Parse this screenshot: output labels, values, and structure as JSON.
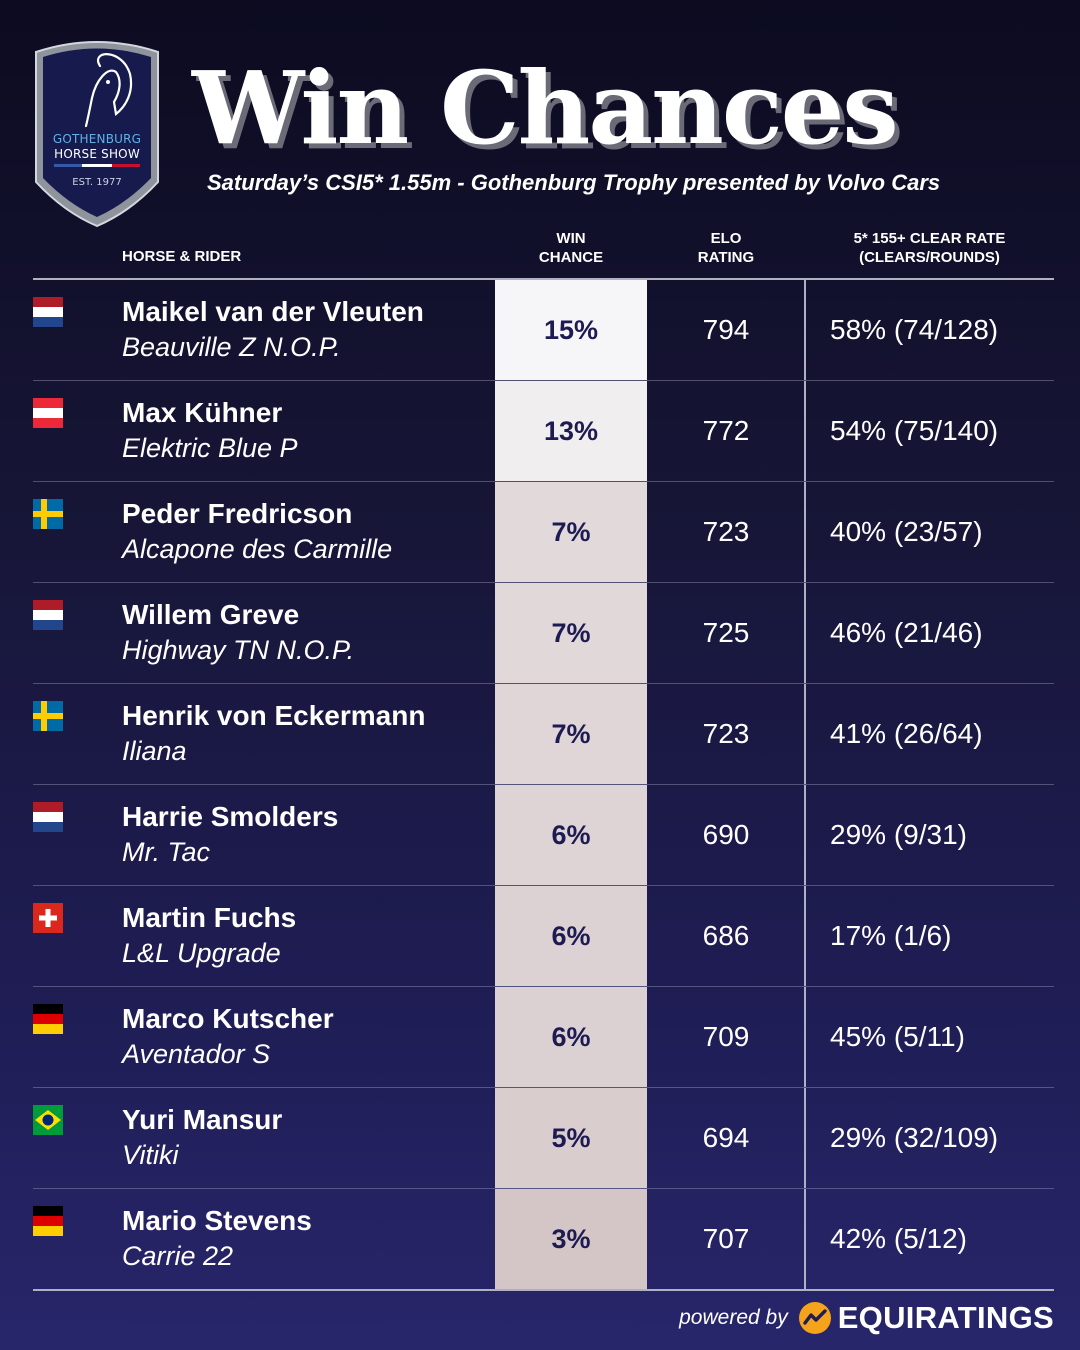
{
  "logo": {
    "line1": "GOTHENBURG",
    "line2": "HORSE SHOW",
    "est": "EST. 1977"
  },
  "title": "Win Chances",
  "subtitle": "Saturday’s CSI5* 1.55m - Gothenburg Trophy presented by Volvo Cars",
  "columns": {
    "rider_line1": "HORSE & RIDER",
    "win_line1": "WIN",
    "win_line2": "CHANCE",
    "elo_line1": "ELO",
    "elo_line2": "RATING",
    "clear_line1": "5* 155+ CLEAR RATE",
    "clear_line2": "(CLEARS/ROUNDS)"
  },
  "rows": [
    {
      "flag": "netherlands-flag",
      "rider": "Maikel van der Vleuten",
      "horse": "Beauville Z N.O.P.",
      "win": "15%",
      "elo": "794",
      "clear": "58% (74/128)"
    },
    {
      "flag": "austria-flag",
      "rider": "Max Kühner",
      "horse": "Elektric Blue P",
      "win": "13%",
      "elo": "772",
      "clear": "54% (75/140)"
    },
    {
      "flag": "sweden-flag",
      "rider": "Peder Fredricson",
      "horse": "Alcapone des Carmille",
      "win": "7%",
      "elo": "723",
      "clear": "40% (23/57)"
    },
    {
      "flag": "netherlands-flag",
      "rider": "Willem Greve",
      "horse": "Highway TN N.O.P.",
      "win": "7%",
      "elo": "725",
      "clear": "46% (21/46)"
    },
    {
      "flag": "sweden-flag",
      "rider": "Henrik von Eckermann",
      "horse": "Iliana",
      "win": "7%",
      "elo": "723",
      "clear": "41% (26/64)"
    },
    {
      "flag": "netherlands-flag",
      "rider": "Harrie Smolders",
      "horse": "Mr. Tac",
      "win": "6%",
      "elo": "690",
      "clear": "29% (9/31)"
    },
    {
      "flag": "switzerland-flag",
      "rider": "Martin Fuchs",
      "horse": "L&L Upgrade",
      "win": "6%",
      "elo": "686",
      "clear": "17% (1/6)"
    },
    {
      "flag": "germany-flag",
      "rider": "Marco Kutscher",
      "horse": "Aventador S",
      "win": "6%",
      "elo": "709",
      "clear": "45% (5/11)"
    },
    {
      "flag": "brazil-flag",
      "rider": "Yuri Mansur",
      "horse": "Vitiki",
      "win": "5%",
      "elo": "694",
      "clear": "29% (32/109)"
    },
    {
      "flag": "germany-flag",
      "rider": "Mario Stevens",
      "horse": "Carrie 22",
      "win": "3%",
      "elo": "707",
      "clear": "42% (5/12)"
    }
  ],
  "win_cell_colors": [
    "#f6f5f8",
    "#f1eef0",
    "#e2d9da",
    "#e1d8d9",
    "#e0d6d7",
    "#ded4d5",
    "#ddd2d3",
    "#dcd1d2",
    "#d9cdce",
    "#d4c6c6"
  ],
  "footer": {
    "powered_by": "powered by",
    "brand": "EQUIRATINGS",
    "brand_icon": "equiratings-logo-icon"
  },
  "colors": {
    "win_text": "#1e1a52",
    "background_top": "#0c0b20",
    "background_bottom": "#28266b",
    "logo_accent": "#5fb2e8"
  }
}
